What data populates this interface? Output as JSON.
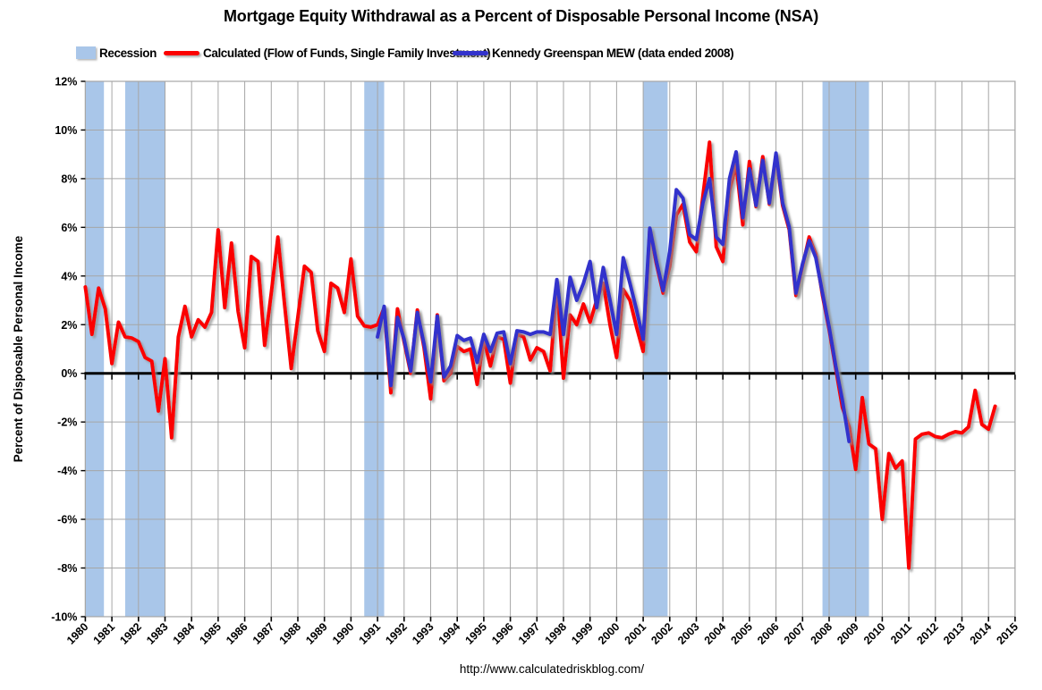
{
  "header": {
    "title": "Mortgage Equity Withdrawal as a Percent of Disposable Personal Income (NSA)"
  },
  "legend": [
    {
      "type": "box",
      "label": "Recession",
      "color": "#A9C6E9"
    },
    {
      "type": "line",
      "label": "Calculated (Flow of Funds, Single Family Investment)",
      "color": "#FB0000"
    },
    {
      "type": "line",
      "label": "Kennedy Greenspan MEW (data ended 2008)",
      "color": "#3333CC"
    }
  ],
  "footer": {
    "url": "http://www.calculatedriskblog.com/"
  },
  "colors": {
    "recession_band": "#A9C6E9",
    "calculated_line": "#FB0000",
    "kennedy_line": "#3333CC",
    "gridline": "#A6A6A6",
    "zero_axis": "#000000"
  },
  "chart_data": {
    "type": "line",
    "title": "Mortgage Equity Withdrawal as a Percent of Disposable Personal Income (NSA)",
    "xlabel": "",
    "ylabel": "Percent of Disposable Personal Income",
    "ylim": [
      -10,
      12
    ],
    "xlim": [
      1980,
      2015
    ],
    "grid": true,
    "legend_position": "top",
    "y_tick_labels": [
      "12%",
      "10%",
      "8%",
      "6%",
      "4%",
      "2%",
      "0%",
      "-2%",
      "-4%",
      "-6%",
      "-8%",
      "-10%"
    ],
    "y_tick_values": [
      12,
      10,
      8,
      6,
      4,
      2,
      0,
      -2,
      -4,
      -6,
      -8,
      -10
    ],
    "x_tick_years": [
      1980,
      1981,
      1982,
      1983,
      1984,
      1985,
      1986,
      1987,
      1988,
      1989,
      1990,
      1991,
      1992,
      1993,
      1994,
      1995,
      1996,
      1997,
      1998,
      1999,
      2000,
      2001,
      2002,
      2003,
      2004,
      2005,
      2006,
      2007,
      2008,
      2009,
      2010,
      2011,
      2012,
      2013,
      2014,
      2015
    ],
    "recession_bands": [
      [
        1980.0,
        1980.7
      ],
      [
        1981.5,
        1983.0
      ],
      [
        1990.5,
        1991.25
      ],
      [
        2001.0,
        2001.92
      ],
      [
        2007.75,
        2009.5
      ]
    ],
    "series": [
      {
        "name": "Calculated (Flow of Funds, Single Family Investment)",
        "color": "#FB0000",
        "x_start": 1980.0,
        "x_step": 0.25,
        "values": [
          3.55,
          1.6,
          3.5,
          2.65,
          0.4,
          2.1,
          1.5,
          1.45,
          1.3,
          0.65,
          0.5,
          -1.55,
          0.6,
          -2.65,
          1.5,
          2.75,
          1.5,
          2.2,
          1.9,
          2.5,
          5.9,
          2.7,
          5.35,
          2.55,
          1.05,
          4.8,
          4.6,
          1.15,
          3.3,
          5.6,
          2.85,
          0.2,
          2.3,
          4.4,
          4.15,
          1.75,
          0.9,
          3.7,
          3.5,
          2.5,
          4.7,
          2.35,
          1.95,
          1.9,
          2.0,
          2.7,
          -0.8,
          2.65,
          1.3,
          0.0,
          2.6,
          1.05,
          -1.05,
          2.4,
          -0.3,
          0.0,
          1.1,
          0.9,
          1.0,
          -0.45,
          1.4,
          0.3,
          1.5,
          1.4,
          -0.4,
          1.6,
          1.5,
          0.55,
          1.05,
          0.9,
          0.1,
          3.7,
          -0.2,
          2.4,
          2.0,
          2.85,
          2.1,
          3.0,
          3.7,
          2.0,
          0.65,
          3.45,
          3.0,
          1.9,
          0.9,
          5.9,
          4.5,
          3.3,
          4.4,
          6.5,
          6.95,
          5.4,
          5.0,
          7.3,
          9.5,
          5.2,
          4.6,
          7.5,
          8.6,
          6.1,
          8.7,
          6.85,
          8.9,
          6.95,
          8.95,
          6.9,
          5.9,
          3.2,
          4.4,
          5.6,
          4.9,
          3.2,
          1.8,
          0.2,
          -1.4,
          -2.2,
          -3.95,
          -1.0,
          -2.9,
          -3.1,
          -6.0,
          -3.3,
          -3.9,
          -3.6,
          -8.0,
          -2.7,
          -2.5,
          -2.45,
          -2.6,
          -2.65,
          -2.5,
          -2.4,
          -2.45,
          -2.2,
          -0.7,
          -2.1,
          -2.3,
          -1.35
        ]
      },
      {
        "name": "Kennedy Greenspan MEW (data ended 2008)",
        "color": "#3333CC",
        "x_start": 1991.0,
        "x_step": 0.25,
        "values": [
          1.5,
          2.75,
          -0.5,
          2.3,
          1.4,
          0.1,
          2.5,
          1.2,
          -0.35,
          2.35,
          -0.15,
          0.3,
          1.55,
          1.35,
          1.45,
          0.45,
          1.6,
          0.9,
          1.65,
          1.7,
          0.4,
          1.75,
          1.7,
          1.6,
          1.7,
          1.7,
          1.6,
          3.85,
          1.6,
          3.95,
          3.0,
          3.7,
          4.6,
          2.7,
          4.35,
          3.0,
          1.6,
          4.75,
          3.7,
          2.6,
          1.4,
          5.97,
          4.6,
          3.4,
          5.0,
          7.55,
          7.2,
          5.7,
          5.5,
          7.0,
          8.0,
          5.6,
          5.3,
          8.0,
          9.1,
          6.4,
          8.4,
          6.9,
          8.75,
          7.0,
          9.05,
          7.0,
          6.0,
          3.3,
          4.5,
          5.45,
          4.75,
          3.3,
          1.9,
          0.3,
          -1.1,
          -2.8
        ]
      }
    ]
  }
}
